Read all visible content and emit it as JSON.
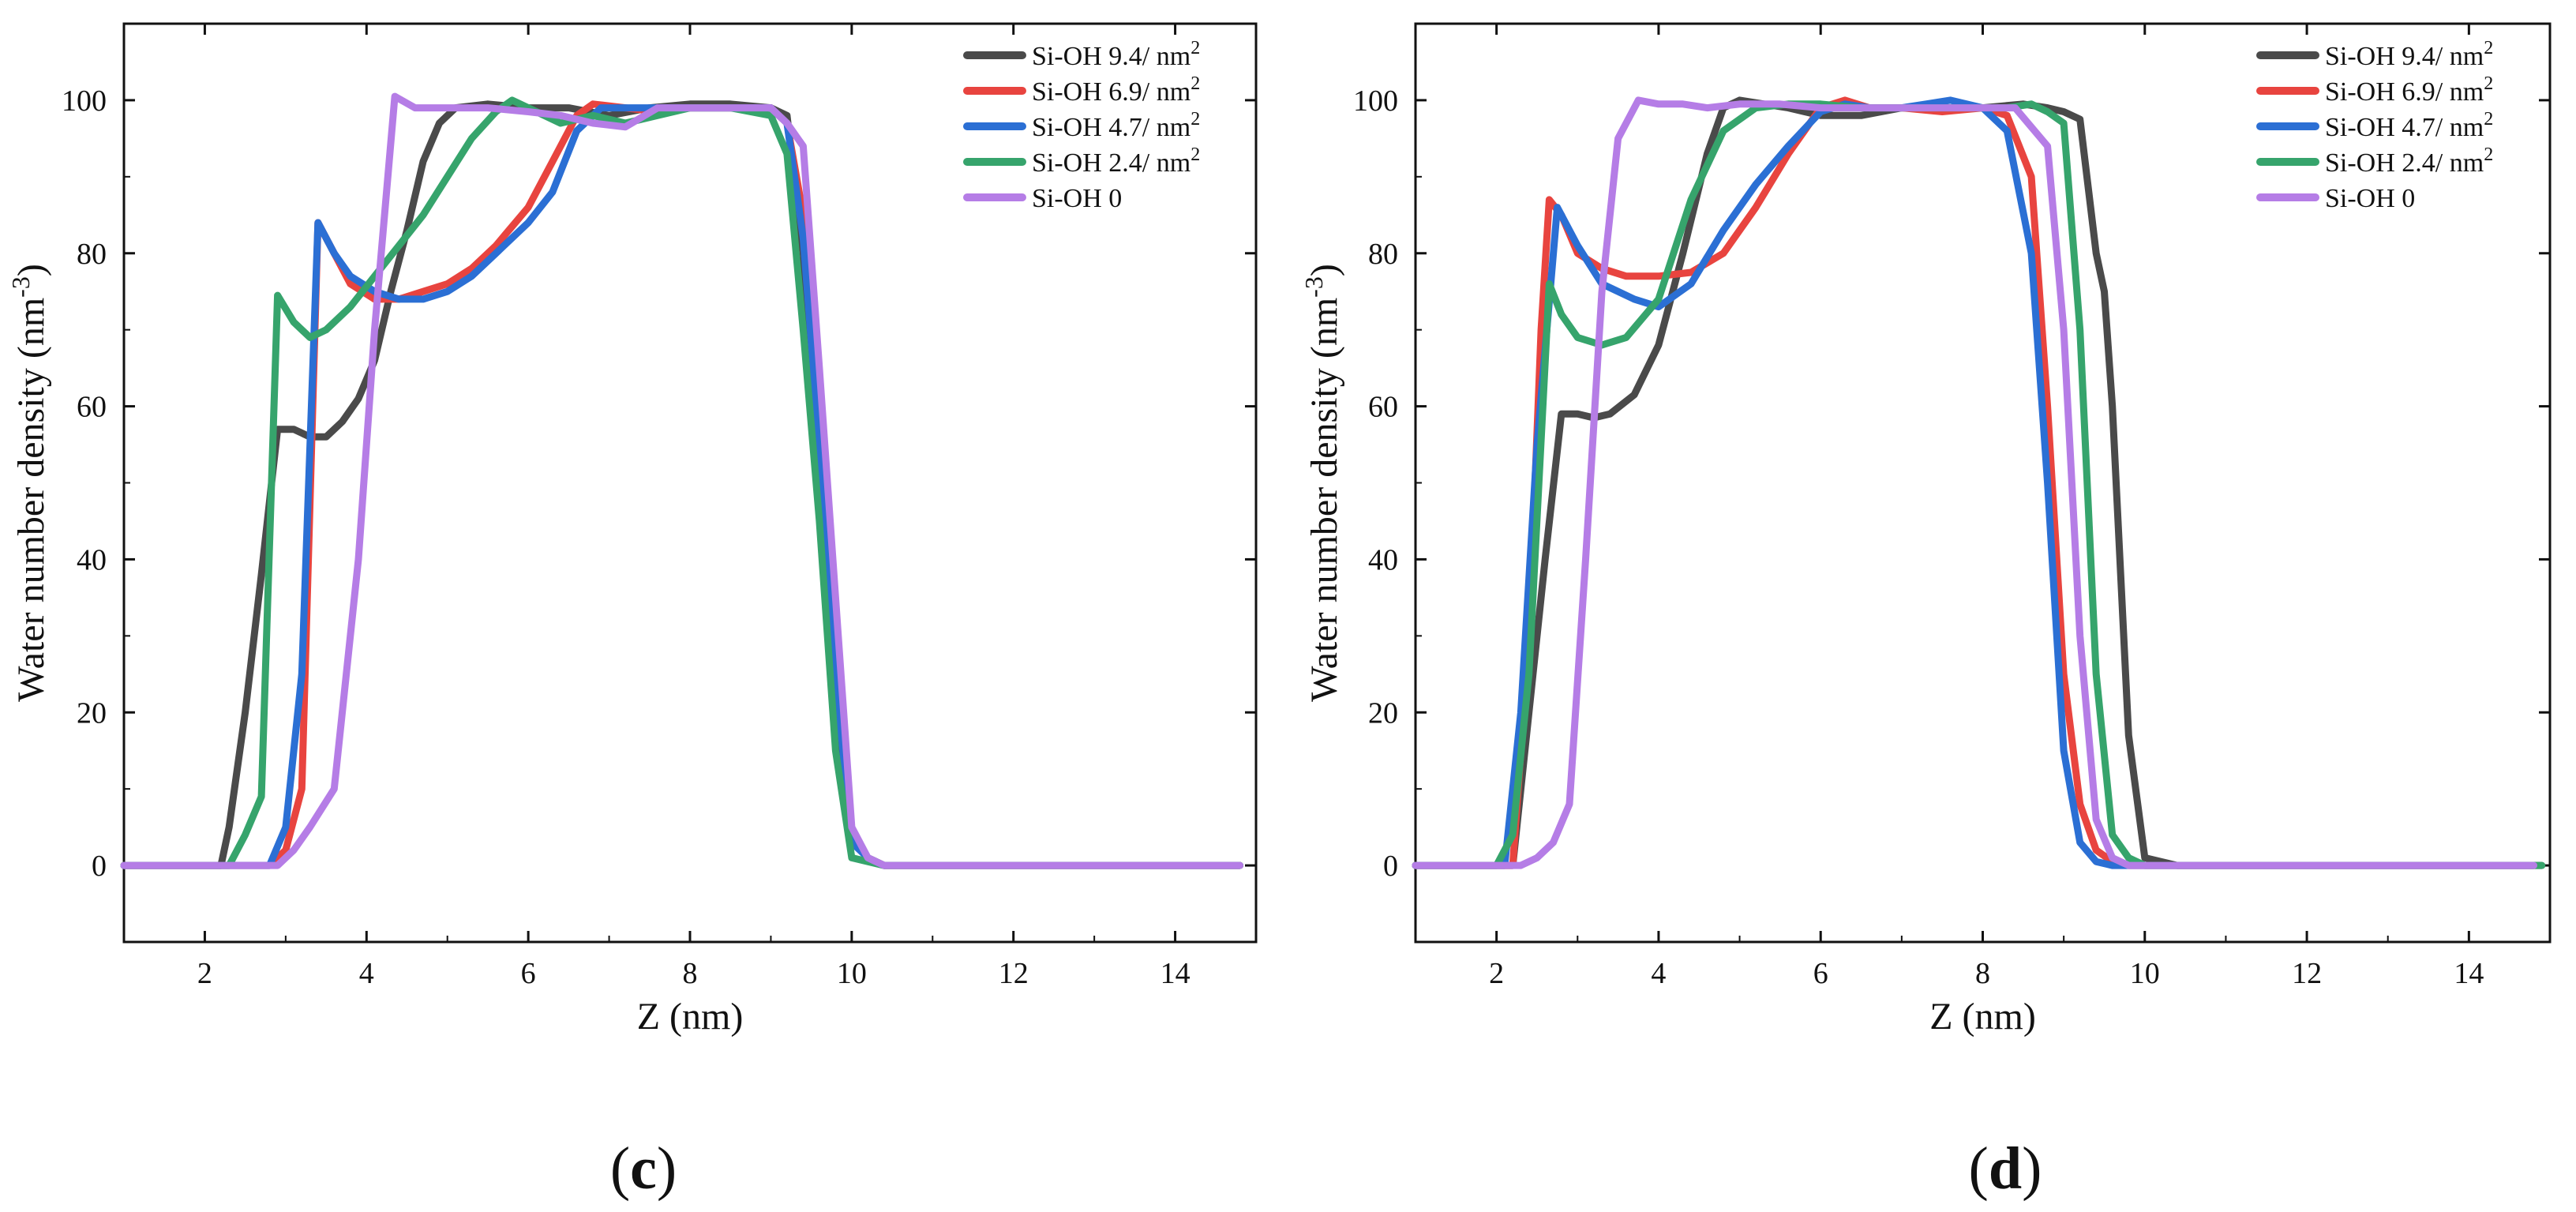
{
  "chart_data": [
    {
      "type": "line",
      "panel_label": "c",
      "xlabel": "Z (nm)",
      "ylabel": "Water number density (nm",
      "ylabel_sup": "-3",
      "ylabel_close": ")",
      "xlim": [
        1,
        15
      ],
      "ylim": [
        -10,
        110
      ],
      "xticks": [
        2,
        4,
        6,
        8,
        10,
        12,
        14
      ],
      "yticks": [
        0,
        20,
        40,
        60,
        80,
        100
      ],
      "legend_position": "top-right",
      "series": [
        {
          "name": "Si-OH 9.4/ nm",
          "unit_sup": "2",
          "color": "#4a4a4a",
          "x": [
            1.0,
            2.2,
            2.3,
            2.5,
            2.7,
            2.9,
            3.1,
            3.3,
            3.5,
            3.7,
            3.9,
            4.1,
            4.3,
            4.5,
            4.7,
            4.9,
            5.1,
            5.5,
            6.0,
            6.5,
            7.0,
            7.5,
            8.0,
            8.5,
            9.0,
            9.2,
            9.4,
            9.6,
            9.8,
            10.0,
            10.2,
            10.4,
            12.0,
            14.8
          ],
          "y": [
            0,
            0,
            5,
            20,
            38,
            57,
            57,
            56,
            56,
            58,
            61,
            66,
            75,
            83,
            92,
            97,
            99,
            99.5,
            99,
            99,
            98,
            99,
            99.5,
            99.5,
            99,
            98,
            80,
            50,
            20,
            4,
            1,
            0,
            0,
            0
          ]
        },
        {
          "name": "Si-OH 6.9/ nm",
          "unit_sup": "2",
          "color": "#e8443f",
          "x": [
            1.0,
            2.8,
            3.0,
            3.2,
            3.4,
            3.6,
            3.8,
            4.1,
            4.4,
            4.7,
            5.0,
            5.3,
            5.6,
            6.0,
            6.3,
            6.6,
            6.8,
            7.2,
            7.6,
            8.0,
            8.5,
            9.0,
            9.2,
            9.4,
            9.6,
            9.8,
            10.0,
            10.2,
            10.4,
            14.8
          ],
          "y": [
            0,
            0,
            2,
            10,
            84,
            80,
            76,
            74,
            74,
            75,
            76,
            78,
            81,
            86,
            92,
            98,
            99.5,
            99,
            98.5,
            99,
            99,
            99,
            97,
            85,
            60,
            30,
            4,
            1,
            0,
            0
          ]
        },
        {
          "name": "Si-OH 4.7/ nm",
          "unit_sup": "2",
          "color": "#2b6fd4",
          "x": [
            1.0,
            2.8,
            3.0,
            3.2,
            3.4,
            3.6,
            3.8,
            4.1,
            4.4,
            4.7,
            5.0,
            5.3,
            5.6,
            6.0,
            6.3,
            6.6,
            6.9,
            7.3,
            7.7,
            8.0,
            8.5,
            9.0,
            9.2,
            9.4,
            9.6,
            9.8,
            10.0,
            10.2,
            10.4,
            14.8
          ],
          "y": [
            0,
            0,
            5,
            25,
            84,
            80,
            77,
            75,
            74,
            74,
            75,
            77,
            80,
            84,
            88,
            96,
            99,
            99,
            99,
            99,
            99,
            99,
            97,
            82,
            55,
            25,
            3,
            1,
            0,
            0
          ]
        },
        {
          "name": "Si-OH 2.4/ nm",
          "unit_sup": "2",
          "color": "#36a46c",
          "x": [
            1.0,
            2.3,
            2.5,
            2.7,
            2.9,
            3.1,
            3.3,
            3.5,
            3.8,
            4.1,
            4.4,
            4.7,
            5.0,
            5.3,
            5.6,
            5.8,
            6.0,
            6.4,
            6.8,
            7.2,
            7.6,
            8.0,
            8.5,
            9.0,
            9.2,
            9.4,
            9.6,
            9.8,
            10.0,
            10.2,
            10.4,
            14.8
          ],
          "y": [
            0,
            0,
            4,
            9,
            74.5,
            71,
            69,
            70,
            73,
            77,
            81,
            85,
            90,
            95,
            98.5,
            100,
            99,
            97,
            98,
            97,
            98,
            99,
            99,
            98,
            93,
            70,
            45,
            15,
            1,
            0.5,
            0,
            0
          ]
        },
        {
          "name": "Si-OH 0",
          "unit_sup": "",
          "color": "#b57de6",
          "x": [
            1.0,
            2.9,
            3.1,
            3.3,
            3.6,
            3.9,
            4.1,
            4.35,
            4.6,
            5.0,
            5.5,
            6.0,
            6.4,
            6.8,
            7.2,
            7.6,
            8.0,
            8.5,
            9.0,
            9.2,
            9.4,
            9.6,
            9.8,
            10.0,
            10.2,
            10.4,
            14.8
          ],
          "y": [
            0,
            0,
            2,
            5,
            10,
            40,
            70,
            100.5,
            99,
            99,
            99,
            98.5,
            98,
            97,
            96.5,
            99,
            99,
            99,
            99,
            97,
            94,
            65,
            35,
            5,
            1,
            0,
            0
          ]
        }
      ]
    },
    {
      "type": "line",
      "panel_label": "d",
      "xlabel": "Z (nm)",
      "ylabel": "Water number density (nm",
      "ylabel_sup": "-3",
      "ylabel_close": ")",
      "xlim": [
        1,
        15
      ],
      "ylim": [
        -10,
        110
      ],
      "xticks": [
        2,
        4,
        6,
        8,
        10,
        12,
        14
      ],
      "yticks": [
        0,
        20,
        40,
        60,
        80,
        100
      ],
      "legend_position": "top-right",
      "series": [
        {
          "name": "Si-OH 9.4/ nm",
          "unit_sup": "2",
          "color": "#4a4a4a",
          "x": [
            1.0,
            2.2,
            2.4,
            2.6,
            2.8,
            3.0,
            3.2,
            3.4,
            3.7,
            4.0,
            4.3,
            4.6,
            4.8,
            5.0,
            5.3,
            5.6,
            6.0,
            6.5,
            7.0,
            7.5,
            8.0,
            8.5,
            8.8,
            9.0,
            9.2,
            9.4,
            9.5,
            9.6,
            9.8,
            10.0,
            10.2,
            10.4,
            14.9
          ],
          "y": [
            0,
            0,
            20,
            40,
            59,
            59,
            58.5,
            59,
            61.5,
            68,
            80,
            93,
            99,
            100,
            99.5,
            99,
            98,
            98,
            99,
            99,
            99,
            99.5,
            99,
            98.5,
            97.5,
            80,
            75,
            60,
            17,
            1,
            0.5,
            0,
            0
          ]
        },
        {
          "name": "Si-OH 6.9/ nm",
          "unit_sup": "2",
          "color": "#e8443f",
          "x": [
            1.0,
            2.2,
            2.4,
            2.55,
            2.65,
            2.8,
            3.0,
            3.3,
            3.6,
            4.0,
            4.4,
            4.8,
            5.2,
            5.6,
            6.0,
            6.3,
            6.6,
            7.0,
            7.5,
            8.0,
            8.3,
            8.6,
            8.8,
            9.0,
            9.2,
            9.4,
            9.6,
            9.8,
            14.8
          ],
          "y": [
            0,
            0,
            30,
            70,
            87,
            85,
            80,
            78,
            77,
            77,
            77.5,
            80,
            86,
            93,
            99,
            100,
            99,
            99,
            98.5,
            99,
            98,
            90,
            60,
            25,
            8,
            2,
            0.5,
            0,
            0
          ]
        },
        {
          "name": "Si-OH 4.7/ nm",
          "unit_sup": "2",
          "color": "#2b6fd4",
          "x": [
            1.0,
            2.1,
            2.3,
            2.5,
            2.75,
            3.0,
            3.3,
            3.7,
            4.0,
            4.4,
            4.8,
            5.2,
            5.6,
            6.0,
            6.3,
            6.6,
            7.0,
            7.3,
            7.6,
            8.0,
            8.3,
            8.6,
            8.8,
            9.0,
            9.2,
            9.4,
            9.6,
            14.8
          ],
          "y": [
            0,
            0,
            20,
            55,
            86,
            81,
            76,
            74,
            73,
            76,
            83,
            89,
            94,
            98.5,
            99.5,
            99,
            99,
            99.5,
            100,
            99,
            96,
            80,
            50,
            15,
            3,
            0.5,
            0,
            0
          ]
        },
        {
          "name": "Si-OH 2.4/ nm",
          "unit_sup": "2",
          "color": "#36a46c",
          "x": [
            1.0,
            2.0,
            2.2,
            2.4,
            2.65,
            2.8,
            3.0,
            3.3,
            3.6,
            4.0,
            4.4,
            4.8,
            5.2,
            5.6,
            6.0,
            6.5,
            7.0,
            7.5,
            8.0,
            8.3,
            8.6,
            8.8,
            9.0,
            9.2,
            9.4,
            9.6,
            9.8,
            10.0,
            14.3,
            14.9
          ],
          "y": [
            0,
            0,
            4,
            25,
            76,
            72,
            69,
            68,
            69,
            74,
            87,
            96,
            99,
            99.5,
            99.5,
            99,
            99,
            99,
            99,
            99,
            99.5,
            98.5,
            97,
            70,
            25,
            4,
            1,
            0,
            0,
            0
          ]
        },
        {
          "name": "Si-OH 0",
          "unit_sup": "",
          "color": "#b57de6",
          "x": [
            1.0,
            2.3,
            2.5,
            2.7,
            2.9,
            3.1,
            3.3,
            3.5,
            3.75,
            4.0,
            4.3,
            4.6,
            5.0,
            5.5,
            6.0,
            6.5,
            7.0,
            7.5,
            8.0,
            8.4,
            8.8,
            9.0,
            9.2,
            9.4,
            9.6,
            9.8,
            14.8
          ],
          "y": [
            0,
            0,
            1,
            3,
            8,
            40,
            75,
            95,
            100,
            99.5,
            99.5,
            99,
            99.5,
            99.5,
            99,
            99,
            99,
            99,
            99,
            99,
            94,
            70,
            30,
            6,
            1,
            0,
            0
          ]
        }
      ]
    }
  ]
}
